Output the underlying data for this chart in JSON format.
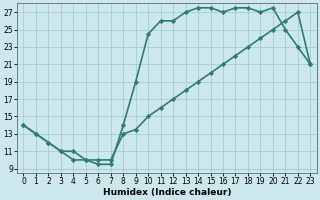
{
  "xlabel": "Humidex (Indice chaleur)",
  "xlim": [
    -0.5,
    23.5
  ],
  "ylim": [
    8.5,
    28.0
  ],
  "yticks": [
    9,
    11,
    13,
    15,
    17,
    19,
    21,
    23,
    25,
    27
  ],
  "xticks": [
    0,
    1,
    2,
    3,
    4,
    5,
    6,
    7,
    8,
    9,
    10,
    11,
    12,
    13,
    14,
    15,
    16,
    17,
    18,
    19,
    20,
    21,
    22,
    23
  ],
  "line1_x": [
    0,
    1,
    2,
    3,
    4,
    5,
    6,
    7,
    8,
    9,
    10,
    11,
    12,
    13,
    14,
    15,
    16,
    17,
    18,
    19,
    20,
    21,
    22,
    23
  ],
  "line1_y": [
    14,
    13,
    12,
    11,
    10,
    10,
    9.5,
    9.5,
    14,
    19,
    24.5,
    26,
    26,
    27,
    27.5,
    27.5,
    27,
    27.5,
    27.5,
    27,
    27.5,
    25,
    23,
    21
  ],
  "line2_x": [
    0,
    1,
    2,
    3,
    4,
    5,
    6,
    7,
    8,
    9,
    10,
    11,
    12,
    13,
    14,
    15,
    16,
    17,
    18,
    19,
    20,
    21,
    22,
    23
  ],
  "line2_y": [
    14,
    13,
    12,
    11,
    11,
    10,
    10,
    10,
    13,
    13.5,
    15,
    16,
    17,
    18,
    19,
    20,
    21,
    22,
    23,
    24,
    25,
    26,
    27,
    21
  ],
  "color": "#2e7d6e",
  "bg_color": "#cde8ec",
  "grid_color": "#9ec8cc",
  "marker": "D",
  "markersize": 2.2,
  "linewidth": 1.2,
  "label_fontsize": 6.5,
  "tick_fontsize": 5.5
}
